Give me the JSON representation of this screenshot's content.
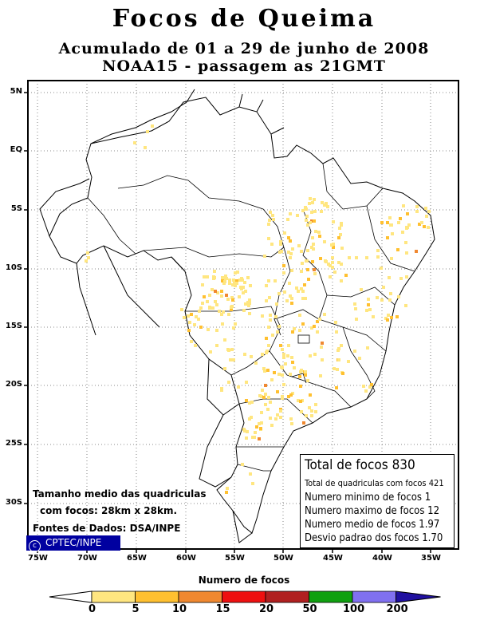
{
  "title": "Focos de Queima",
  "subtitle1": "Acumulado de 01 a 29 de junho de 2008",
  "subtitle2": "NOAA15 - passagem as 21GMT",
  "stats": {
    "total": "Total de focos 830",
    "quad": "Total de quadriculas com focos 421",
    "min": "Numero minimo de focos 1",
    "max": "Numero maximo de focos 12",
    "mean": "Numero medio de focos 1.97",
    "sd": "Desvio padrao dos focos 1.70"
  },
  "notes": {
    "size1": "Tamanho medio das quadriculas",
    "size2": "com focos: 28km x 28km.",
    "source": "Fontes de Dados: DSA/INPE"
  },
  "badge": {
    "symbol": "c",
    "text": "CPTEC/INPE"
  },
  "lat_labels": [
    "5N",
    "EQ",
    "5S",
    "10S",
    "15S",
    "20S",
    "25S",
    "30S"
  ],
  "lon_labels": [
    "75W",
    "70W",
    "65W",
    "60W",
    "55W",
    "50W",
    "45W",
    "40W",
    "35W"
  ],
  "legend": {
    "title": "Numero de focos",
    "ticks": [
      "0",
      "5",
      "10",
      "15",
      "20",
      "50",
      "100",
      "200"
    ],
    "colors": [
      "#ffe680",
      "#ffc030",
      "#f08830",
      "#ee1010",
      "#b02020",
      "#10a010",
      "#8070f0",
      "#2010a0"
    ]
  },
  "fire_colors": [
    "#ffe680",
    "#ffc030",
    "#f08830"
  ]
}
